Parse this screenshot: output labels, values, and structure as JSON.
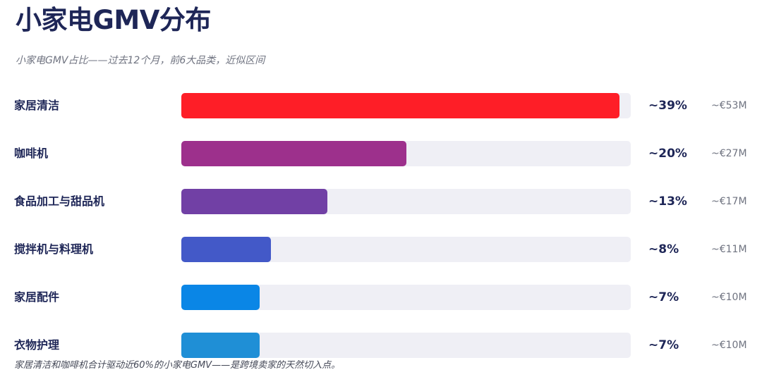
{
  "chart_data": {
    "type": "bar",
    "orientation": "horizontal",
    "title": "小家电GMV分布",
    "subtitle": "小家电GMV占比——过去12个月，前6大品类，近似区间",
    "categories": [
      "家居清洁",
      "咖啡机",
      "食品加工与甜品机",
      "搅拌机与料理机",
      "家居配件",
      "衣物护理"
    ],
    "values": [
      39,
      20,
      13,
      8,
      7,
      7
    ],
    "percent_labels": [
      "~39%",
      "~20%",
      "~13%",
      "~8%",
      "~7%",
      "~7%"
    ],
    "amount_labels": [
      "~€53M",
      "~€27M",
      "~€17M",
      "~€11M",
      "~€10M",
      "~€10M"
    ],
    "colors": [
      "#fe1e27",
      "#9d308c",
      "#7140a5",
      "#4359c8",
      "#0a86e6",
      "#1f8fd6"
    ],
    "xlim": [
      0,
      40
    ],
    "grid": false,
    "legend": "none",
    "footnote": "家居清洁和咖啡机合计驱动近60%的小家电GMV——是跨境卖家的天然切入点。"
  }
}
